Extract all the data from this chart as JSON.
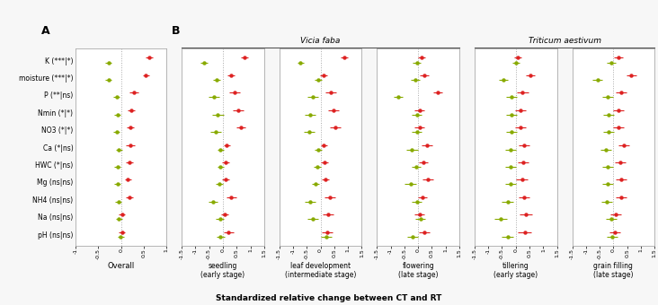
{
  "y_labels": [
    "K (***|*)",
    "moisture (***|*)",
    "P (**|ns)",
    "Nmin (*|*)",
    "NO3 (*|*)",
    "Ca (*|ns)",
    "HWC (*|ns)",
    "Mg (ns|ns)",
    "NH4 (ns|ns)",
    "Na (ns|ns)",
    "pH (ns|ns)"
  ],
  "ct_color": "#dd2222",
  "rt_color": "#88aa00",
  "panel_A": {
    "title": "Overall",
    "ct_vals": [
      0.62,
      0.55,
      0.28,
      0.22,
      0.2,
      0.2,
      0.18,
      0.15,
      0.18,
      0.02,
      0.02
    ],
    "ct_lo": [
      0.55,
      0.48,
      0.18,
      0.14,
      0.12,
      0.1,
      0.1,
      0.08,
      0.1,
      -0.05,
      -0.05
    ],
    "ct_hi": [
      0.69,
      0.62,
      0.38,
      0.3,
      0.28,
      0.3,
      0.26,
      0.22,
      0.26,
      0.09,
      0.09
    ],
    "rt_vals": [
      -0.28,
      -0.28,
      -0.1,
      -0.08,
      -0.1,
      -0.05,
      -0.08,
      -0.08,
      -0.06,
      -0.05,
      -0.01
    ],
    "rt_lo": [
      -0.35,
      -0.35,
      -0.17,
      -0.15,
      -0.17,
      -0.12,
      -0.15,
      -0.15,
      -0.13,
      -0.12,
      -0.08
    ],
    "rt_hi": [
      -0.21,
      -0.21,
      -0.03,
      -0.01,
      -0.03,
      0.02,
      -0.01,
      -0.01,
      0.01,
      0.02,
      0.06
    ],
    "xlim": [
      -1.0,
      1.0
    ],
    "xticks": [
      -1.0,
      -0.5,
      0.0,
      0.5,
      1.0
    ]
  },
  "panel_B": [
    {
      "title": "seedling",
      "subtitle": "(early stage)",
      "ct_vals": [
        0.78,
        0.3,
        0.42,
        0.55,
        0.65,
        0.15,
        0.1,
        0.1,
        0.3,
        0.08,
        0.2
      ],
      "ct_lo": [
        0.65,
        0.18,
        0.22,
        0.35,
        0.48,
        0.05,
        -0.02,
        -0.02,
        0.12,
        -0.05,
        0.02
      ],
      "ct_hi": [
        0.91,
        0.42,
        0.62,
        0.75,
        0.82,
        0.25,
        0.22,
        0.22,
        0.48,
        0.21,
        0.38
      ],
      "rt_vals": [
        -0.68,
        -0.22,
        -0.32,
        -0.18,
        -0.25,
        -0.08,
        -0.08,
        -0.12,
        -0.35,
        -0.1,
        -0.08
      ],
      "rt_lo": [
        -0.81,
        -0.35,
        -0.52,
        -0.38,
        -0.45,
        -0.2,
        -0.2,
        -0.25,
        -0.52,
        -0.25,
        -0.22
      ],
      "rt_hi": [
        -0.55,
        -0.09,
        -0.12,
        0.02,
        -0.05,
        0.04,
        0.04,
        0.01,
        -0.18,
        0.05,
        0.06
      ],
      "xlim": [
        -1.5,
        1.5
      ],
      "xticks": [
        -1.5,
        -1.0,
        -0.5,
        0.0,
        0.5,
        1.0,
        1.5
      ]
    },
    {
      "title": "leaf development",
      "subtitle": "(intermediate stage)",
      "ct_vals": [
        0.85,
        0.12,
        0.38,
        0.48,
        0.55,
        0.12,
        0.15,
        0.18,
        0.35,
        0.28,
        0.25
      ],
      "ct_lo": [
        0.72,
        -0.02,
        0.18,
        0.28,
        0.35,
        0.0,
        0.02,
        0.05,
        0.15,
        0.08,
        0.05
      ],
      "ct_hi": [
        0.98,
        0.26,
        0.58,
        0.68,
        0.75,
        0.24,
        0.28,
        0.31,
        0.55,
        0.48,
        0.45
      ],
      "rt_vals": [
        -0.72,
        -0.08,
        -0.28,
        -0.38,
        -0.42,
        -0.08,
        -0.12,
        -0.18,
        -0.38,
        -0.28,
        0.22
      ],
      "rt_lo": [
        -0.85,
        -0.22,
        -0.48,
        -0.58,
        -0.62,
        -0.22,
        -0.25,
        -0.31,
        -0.58,
        -0.48,
        0.02
      ],
      "rt_hi": [
        -0.59,
        0.06,
        -0.08,
        -0.18,
        -0.22,
        0.06,
        0.01,
        -0.05,
        -0.18,
        -0.08,
        0.42
      ],
      "xlim": [
        -1.5,
        1.5
      ],
      "xticks": [
        -1.5,
        -1.0,
        -0.5,
        0.0,
        0.5,
        1.0,
        1.5
      ]
    },
    {
      "title": "flowering",
      "subtitle": "(late stage)",
      "ct_vals": [
        0.12,
        0.22,
        0.72,
        0.05,
        0.05,
        0.32,
        0.18,
        0.35,
        0.15,
        0.05,
        0.22
      ],
      "ct_lo": [
        -0.02,
        0.05,
        0.55,
        -0.12,
        -0.12,
        0.12,
        0.02,
        0.15,
        -0.02,
        -0.12,
        0.02
      ],
      "ct_hi": [
        0.26,
        0.39,
        0.89,
        0.22,
        0.22,
        0.52,
        0.34,
        0.55,
        0.32,
        0.22,
        0.42
      ],
      "rt_vals": [
        -0.05,
        -0.1,
        -0.72,
        -0.05,
        -0.05,
        -0.22,
        -0.08,
        -0.28,
        -0.05,
        0.08,
        -0.2
      ],
      "rt_lo": [
        -0.19,
        -0.27,
        -0.89,
        -0.22,
        -0.22,
        -0.42,
        -0.24,
        -0.48,
        -0.22,
        -0.09,
        -0.4
      ],
      "rt_hi": [
        0.09,
        0.07,
        -0.55,
        0.12,
        0.12,
        -0.02,
        0.08,
        -0.08,
        0.12,
        0.25,
        0.0
      ],
      "xlim": [
        -1.5,
        1.5
      ],
      "xticks": [
        -1.5,
        -1.0,
        -0.5,
        0.0,
        0.5,
        1.0,
        1.5
      ]
    },
    {
      "title": "tillering",
      "subtitle": "(early stage)",
      "ct_vals": [
        0.08,
        0.52,
        0.25,
        0.18,
        0.18,
        0.3,
        0.28,
        0.22,
        0.3,
        0.38,
        0.32
      ],
      "ct_lo": [
        -0.05,
        0.35,
        0.05,
        -0.02,
        -0.02,
        0.1,
        0.08,
        0.02,
        0.1,
        0.15,
        0.08
      ],
      "ct_hi": [
        0.21,
        0.69,
        0.45,
        0.38,
        0.38,
        0.5,
        0.48,
        0.42,
        0.5,
        0.61,
        0.56
      ],
      "rt_vals": [
        0.02,
        -0.45,
        -0.15,
        -0.15,
        -0.15,
        -0.2,
        -0.2,
        -0.18,
        -0.3,
        -0.55,
        -0.3
      ],
      "rt_lo": [
        -0.11,
        -0.62,
        -0.35,
        -0.35,
        -0.35,
        -0.4,
        -0.4,
        -0.38,
        -0.5,
        -0.78,
        -0.5
      ],
      "rt_hi": [
        0.15,
        -0.28,
        0.05,
        0.05,
        0.05,
        0.0,
        0.0,
        0.02,
        -0.1,
        -0.32,
        -0.1
      ],
      "xlim": [
        -1.5,
        1.5
      ],
      "xticks": [
        -1.5,
        -1.0,
        -0.5,
        0.0,
        0.5,
        1.0,
        1.5
      ]
    },
    {
      "title": "grain filling",
      "subtitle": "(late stage)",
      "ct_vals": [
        0.18,
        0.65,
        0.28,
        0.18,
        0.18,
        0.38,
        0.25,
        0.28,
        0.28,
        0.08,
        0.05
      ],
      "ct_lo": [
        0.02,
        0.48,
        0.08,
        -0.02,
        -0.02,
        0.18,
        0.05,
        0.08,
        0.08,
        -0.12,
        -0.15
      ],
      "ct_hi": [
        0.34,
        0.82,
        0.48,
        0.38,
        0.38,
        0.58,
        0.45,
        0.48,
        0.48,
        0.28,
        0.25
      ],
      "rt_vals": [
        -0.08,
        -0.58,
        -0.22,
        -0.18,
        -0.18,
        -0.28,
        -0.22,
        -0.22,
        -0.25,
        -0.08,
        -0.05
      ],
      "rt_lo": [
        -0.24,
        -0.75,
        -0.42,
        -0.38,
        -0.38,
        -0.48,
        -0.42,
        -0.42,
        -0.45,
        -0.28,
        -0.25
      ],
      "rt_hi": [
        0.08,
        -0.41,
        -0.02,
        0.02,
        0.02,
        -0.08,
        -0.02,
        -0.02,
        -0.05,
        0.12,
        0.15
      ],
      "xlim": [
        -1.5,
        1.5
      ],
      "xticks": [
        -1.5,
        -1.0,
        -0.5,
        0.0,
        0.5,
        1.0,
        1.5
      ]
    }
  ],
  "bottom_label": "Standardized relative change between CT and RT",
  "fig_label_A": "A",
  "fig_label_B": "B",
  "vicia_title": "Vicia faba",
  "triticum_title": "Triticum aestivum",
  "bg_color": "#f7f7f7",
  "panel_bg": "#ffffff",
  "spine_color": "#aaaaaa"
}
